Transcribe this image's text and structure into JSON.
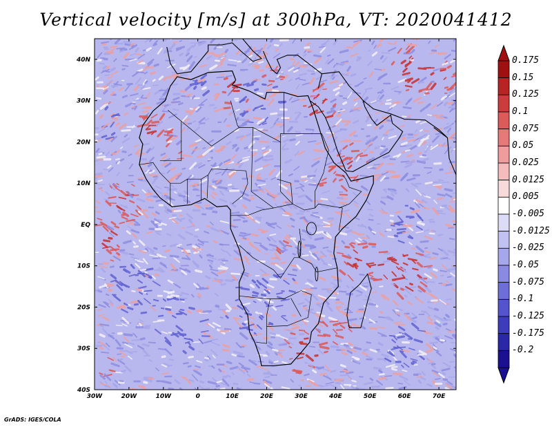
{
  "title": "Vertical velocity [m/s] at 300hPa, VT: 2020041412",
  "credit": "GrADS: IGES/COLA",
  "map": {
    "lon_range": [
      -30,
      75
    ],
    "lat_range": [
      -40,
      45
    ],
    "lat_ticks": [
      {
        "value": 40,
        "label": "40N"
      },
      {
        "value": 30,
        "label": "30N"
      },
      {
        "value": 20,
        "label": "20N"
      },
      {
        "value": 10,
        "label": "10N"
      },
      {
        "value": 0,
        "label": "EQ"
      },
      {
        "value": -10,
        "label": "10S"
      },
      {
        "value": -20,
        "label": "20S"
      },
      {
        "value": -30,
        "label": "30S"
      },
      {
        "value": -40,
        "label": "40S"
      }
    ],
    "lon_ticks": [
      {
        "value": -30,
        "label": "30W"
      },
      {
        "value": -20,
        "label": "20W"
      },
      {
        "value": -10,
        "label": "10W"
      },
      {
        "value": 0,
        "label": "0"
      },
      {
        "value": 10,
        "label": "10E"
      },
      {
        "value": 20,
        "label": "20E"
      },
      {
        "value": 30,
        "label": "30E"
      },
      {
        "value": 40,
        "label": "40E"
      },
      {
        "value": 50,
        "label": "50E"
      },
      {
        "value": 60,
        "label": "60E"
      },
      {
        "value": 70,
        "label": "70E"
      }
    ]
  },
  "colorbar": {
    "levels": [
      {
        "label": "0.175",
        "color": "#a01010"
      },
      {
        "label": "0.15",
        "color": "#b82424"
      },
      {
        "label": "0.125",
        "color": "#cc3c3c"
      },
      {
        "label": "0.1",
        "color": "#dc5a5a"
      },
      {
        "label": "0.075",
        "color": "#e67a7a"
      },
      {
        "label": "0.05",
        "color": "#ee9c9c"
      },
      {
        "label": "0.025",
        "color": "#f4bcbc"
      },
      {
        "label": "0.0125",
        "color": "#f9dada"
      },
      {
        "label": "0.005",
        "color": "#ffffff"
      },
      {
        "label": "-0.005",
        "color": "#dcdcf8"
      },
      {
        "label": "-0.0125",
        "color": "#c2c2f2"
      },
      {
        "label": "-0.025",
        "color": "#a6a6ea"
      },
      {
        "label": "-0.05",
        "color": "#8a8ae2"
      },
      {
        "label": "-0.075",
        "color": "#6e6ed8"
      },
      {
        "label": "-0.1",
        "color": "#5454cc"
      },
      {
        "label": "-0.125",
        "color": "#3c3cbc"
      },
      {
        "label": "-0.175",
        "color": "#2a28a8"
      },
      {
        "label": "-0.2",
        "color": "#1a1090"
      }
    ],
    "top_triangle_color": "#a01010",
    "bottom_triangle_color": "#1a1090"
  },
  "colors": {
    "field_base": "#b8b8ee",
    "upward_red": "#e07070",
    "downward_blue": "#6666d6",
    "coastline": "#000000"
  }
}
